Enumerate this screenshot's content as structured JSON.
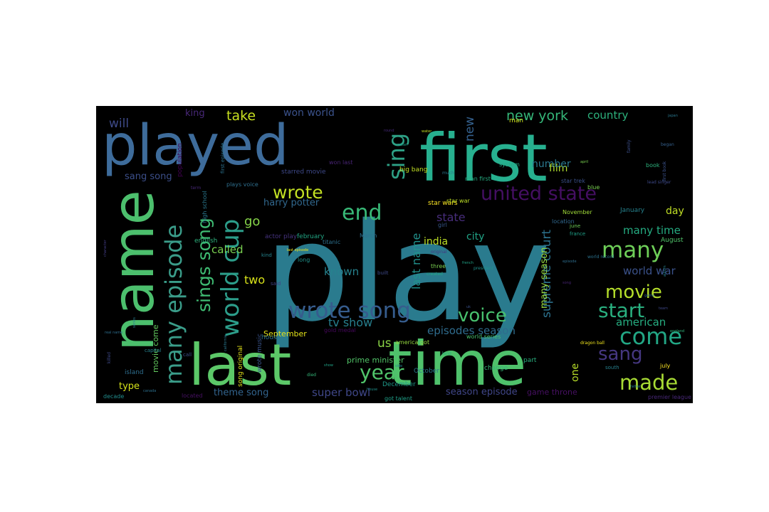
{
  "word_cloud": {
    "words": [
      {
        "text": "play",
        "color": "#2a7b8e"
      },
      {
        "text": "first",
        "color": "#27b08f"
      },
      {
        "text": "played",
        "color": "#3e6c9b"
      },
      {
        "text": "last",
        "color": "#5cc868"
      },
      {
        "text": "time",
        "color": "#4fc16b"
      },
      {
        "text": "name",
        "color": "#4cbf6d"
      },
      {
        "text": "united state",
        "color": "#440f62"
      },
      {
        "text": "world cup",
        "color": "#2c9d8a"
      },
      {
        "text": "many episode",
        "color": "#3a9c89"
      },
      {
        "text": "wrote song",
        "color": "#365c8d"
      },
      {
        "text": "end",
        "color": "#38b977"
      },
      {
        "text": "many",
        "color": "#6ece58"
      },
      {
        "text": "sing",
        "color": "#2ea186"
      },
      {
        "text": "wrote",
        "color": "#c2df23"
      },
      {
        "text": "movie",
        "color": "#b5de2b"
      },
      {
        "text": "start",
        "color": "#29af7f"
      },
      {
        "text": "voice",
        "color": "#48c16e"
      },
      {
        "text": "come",
        "color": "#22a785"
      },
      {
        "text": "sang",
        "color": "#453781"
      },
      {
        "text": "year",
        "color": "#50c46a"
      },
      {
        "text": "made",
        "color": "#a8db34"
      },
      {
        "text": "sings song",
        "color": "#3fbc73"
      },
      {
        "text": "new york",
        "color": "#35b779"
      },
      {
        "text": "take",
        "color": "#c8e020"
      },
      {
        "text": "won world",
        "color": "#3b528b"
      },
      {
        "text": "country",
        "color": "#2db27d"
      },
      {
        "text": "new",
        "color": "#34608d"
      },
      {
        "text": "king",
        "color": "#482878"
      },
      {
        "text": "will",
        "color": "#3e4a89"
      },
      {
        "text": "go",
        "color": "#86d549"
      },
      {
        "text": "harry potter",
        "color": "#31688e"
      },
      {
        "text": "called",
        "color": "#7ad151"
      },
      {
        "text": "known",
        "color": "#26828e"
      },
      {
        "text": "two",
        "color": "#d8e219"
      },
      {
        "text": "film",
        "color": "#b0dd2f"
      },
      {
        "text": "number",
        "color": "#2a788e"
      },
      {
        "text": "state",
        "color": "#472d7b"
      },
      {
        "text": "city",
        "color": "#20a386"
      },
      {
        "text": "india",
        "color": "#bddf26"
      },
      {
        "text": "supreme court",
        "color": "#2c728e"
      },
      {
        "text": "last name",
        "color": "#21918c"
      },
      {
        "text": "many season",
        "color": "#95d840"
      },
      {
        "text": "many time",
        "color": "#25ac82"
      },
      {
        "text": "world war",
        "color": "#3b528b"
      },
      {
        "text": "american",
        "color": "#26ad81"
      },
      {
        "text": "day",
        "color": "#c0df25"
      },
      {
        "text": "sang song",
        "color": "#3c4f8a"
      },
      {
        "text": "tv show",
        "color": "#277f8e"
      },
      {
        "text": "us",
        "color": "#8bd646"
      },
      {
        "text": "episodes season",
        "color": "#2f6c8e"
      },
      {
        "text": "season episode",
        "color": "#404688"
      },
      {
        "text": "theme song",
        "color": "#32648e"
      },
      {
        "text": "super bowl",
        "color": "#3f4788"
      },
      {
        "text": "type",
        "color": "#d5e21a"
      },
      {
        "text": "movie come",
        "color": "#63cb5f"
      },
      {
        "text": "September",
        "color": "#e5e419"
      },
      {
        "text": "game throne",
        "color": "#471063"
      },
      {
        "text": "prime minister",
        "color": "#52c569"
      },
      {
        "text": "one",
        "color": "#b8de29"
      },
      {
        "text": "star wars",
        "color": "#fde725"
      },
      {
        "text": "January",
        "color": "#26828e"
      },
      {
        "text": "November",
        "color": "#a0da39"
      },
      {
        "text": "August",
        "color": "#50c46a"
      },
      {
        "text": "October",
        "color": "#2a788e"
      },
      {
        "text": "December",
        "color": "#1f9a8a"
      },
      {
        "text": "March",
        "color": "#2d708e"
      },
      {
        "text": "big bang",
        "color": "#c2df23"
      },
      {
        "text": "star trek",
        "color": "#3b528b"
      },
      {
        "text": "world series",
        "color": "#48c16e"
      },
      {
        "text": "got talent",
        "color": "#1fa088"
      },
      {
        "text": "change",
        "color": "#35b779"
      },
      {
        "text": "part",
        "color": "#29af7f"
      },
      {
        "text": "built",
        "color": "#3e4a89"
      },
      {
        "text": "three",
        "color": "#7ad151"
      },
      {
        "text": "original",
        "color": "#453781"
      },
      {
        "text": "created",
        "color": "#22a884"
      },
      {
        "text": "location",
        "color": "#31688e"
      },
      {
        "text": "house",
        "color": "#2c728e"
      },
      {
        "text": "starred movie",
        "color": "#3e4989"
      },
      {
        "text": "won last",
        "color": "#482475"
      },
      {
        "text": "plays voice",
        "color": "#2e6f8e"
      },
      {
        "text": "man",
        "color": "#d0e11c"
      },
      {
        "text": "girl",
        "color": "#38588c"
      },
      {
        "text": "june",
        "color": "#6ece58"
      },
      {
        "text": "france",
        "color": "#1fa188"
      },
      {
        "text": "first episode",
        "color": "#2c728e"
      },
      {
        "text": "high school",
        "color": "#2a788e"
      },
      {
        "text": "song original",
        "color": "#e5e419"
      },
      {
        "text": "wrote music",
        "color": "#3a548c"
      },
      {
        "text": "long",
        "color": "#20928c"
      },
      {
        "text": "kind",
        "color": "#25848e"
      },
      {
        "text": "english",
        "color": "#2db27d"
      },
      {
        "text": "population",
        "color": "#440154"
      },
      {
        "text": "system",
        "color": "#22a785"
      },
      {
        "text": "island",
        "color": "#2e6e8e"
      },
      {
        "text": "located",
        "color": "#471164"
      },
      {
        "text": "decade",
        "color": "#228d8d"
      },
      {
        "text": "gold medal",
        "color": "#46085c"
      },
      {
        "text": "last episode",
        "color": "#f1e51d"
      },
      {
        "text": "titanic",
        "color": "#2d708e"
      },
      {
        "text": "america got",
        "color": "#95d840"
      },
      {
        "text": "land",
        "color": "#29af7f"
      },
      {
        "text": "south",
        "color": "#27808e"
      },
      {
        "text": "call",
        "color": "#3b528b"
      },
      {
        "text": "french",
        "color": "#20a386"
      },
      {
        "text": "president",
        "color": "#21918c"
      },
      {
        "text": "term",
        "color": "#482878"
      },
      {
        "text": "dragon ball",
        "color": "#f1e51d"
      },
      {
        "text": "capital",
        "color": "#26828e"
      },
      {
        "text": "lead singer",
        "color": "#3e4989"
      },
      {
        "text": "july",
        "color": "#fde725"
      },
      {
        "text": "april",
        "color": "#7ad151"
      },
      {
        "text": "book",
        "color": "#2db27d"
      },
      {
        "text": "began",
        "color": "#35608d"
      },
      {
        "text": "family",
        "color": "#3c4f8a"
      },
      {
        "text": "world record",
        "color": "#2c728e"
      },
      {
        "text": "premier league",
        "color": "#482878"
      },
      {
        "text": "blue",
        "color": "#7ad151"
      },
      {
        "text": "actor play",
        "color": "#46337f"
      },
      {
        "text": "february",
        "color": "#22a785"
      },
      {
        "text": "star war",
        "color": "#bddf26"
      },
      {
        "text": "man first",
        "color": "#26ad81"
      },
      {
        "text": "said",
        "color": "#414487"
      },
      {
        "text": "water",
        "color": "#c2df23"
      },
      {
        "text": "mean",
        "color": "#1f9e89"
      },
      {
        "text": "first book",
        "color": "#3b528b"
      },
      {
        "text": "much",
        "color": "#2a788e"
      },
      {
        "text": "house",
        "color": "#21918c"
      },
      {
        "text": "round",
        "color": "#472a7a"
      },
      {
        "text": "real name",
        "color": "#2e6e8e"
      },
      {
        "text": "died",
        "color": "#35b779"
      },
      {
        "text": "killed",
        "color": "#3e4a89"
      },
      {
        "text": "california",
        "color": "#2a788e"
      },
      {
        "text": "side",
        "color": "#24878e"
      },
      {
        "text": "character",
        "color": "#433e85"
      },
      {
        "text": "episode",
        "color": "#2e6e8e"
      },
      {
        "text": "album",
        "color": "#26828e"
      },
      {
        "text": "song",
        "color": "#482475"
      },
      {
        "text": "show",
        "color": "#20a386"
      },
      {
        "text": "game",
        "color": "#31688e"
      },
      {
        "text": "team",
        "color": "#3f4788"
      },
      {
        "text": "series",
        "color": "#287d8e"
      },
      {
        "text": "england",
        "color": "#31b57b"
      },
      {
        "text": "canada",
        "color": "#2d708e"
      },
      {
        "text": "uk",
        "color": "#3b528b"
      },
      {
        "text": "father",
        "color": "#26828e"
      },
      {
        "text": "japan",
        "color": "#2a788e"
      }
    ]
  }
}
